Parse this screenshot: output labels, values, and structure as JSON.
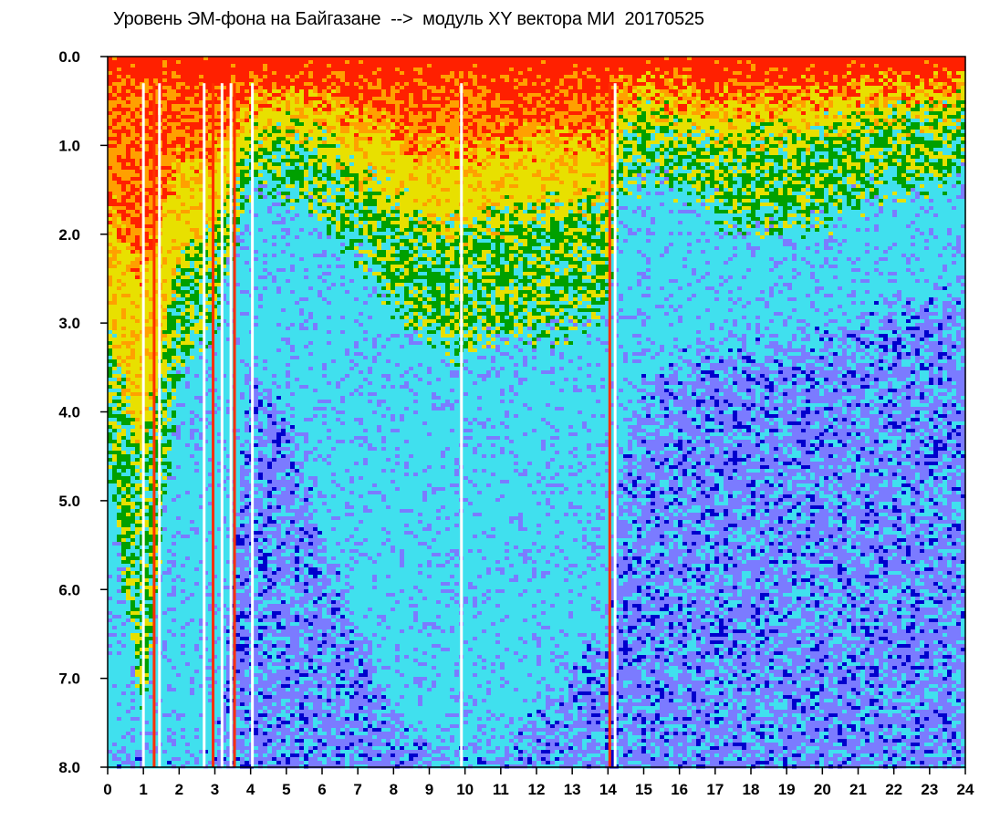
{
  "title": "Уровень ЭМ-фона на Байгазане  -->  модуль XY вектора МИ  20170525",
  "chart_data": {
    "type": "heatmap",
    "title": "Уровень ЭМ-фона на Байгазане  -->  модуль XY вектора МИ  20170525",
    "xlabel": "",
    "ylabel": "",
    "x_ticks": [
      "0",
      "1",
      "2",
      "3",
      "4",
      "5",
      "6",
      "7",
      "8",
      "9",
      "10",
      "11",
      "12",
      "13",
      "14",
      "15",
      "16",
      "17",
      "18",
      "19",
      "20",
      "21",
      "22",
      "23",
      "24"
    ],
    "y_ticks": [
      "0.0",
      "1.0",
      "2.0",
      "3.0",
      "4.0",
      "5.0",
      "6.0",
      "7.0",
      "8.0"
    ],
    "xlim": [
      0,
      24
    ],
    "ylim": [
      0,
      8
    ],
    "y_inverted": true,
    "grid": false,
    "colormap": [
      "#0000cc",
      "#7b7bff",
      "#40e0ee",
      "#00a000",
      "#e8e000",
      "#ffa000",
      "#ff2000"
    ],
    "level_profile": {
      "description_hours": [
        0,
        1,
        2,
        3,
        4,
        5,
        6,
        7,
        8,
        9,
        10,
        11,
        12,
        13,
        14,
        14.3,
        15,
        16,
        17,
        18,
        19,
        20,
        21,
        22,
        23,
        24
      ],
      "yellow_depth": [
        3.0,
        4.5,
        2.2,
        2.0,
        0.9,
        0.8,
        1.0,
        1.3,
        1.6,
        1.9,
        1.9,
        1.8,
        1.7,
        1.7,
        1.6,
        0.8,
        0.6,
        0.8,
        0.9,
        0.9,
        0.9,
        0.8,
        0.7,
        0.7,
        0.6,
        0.6
      ],
      "green_depth": [
        4.5,
        7.5,
        3.5,
        3.0,
        1.4,
        1.5,
        1.8,
        2.2,
        2.8,
        3.2,
        3.3,
        3.2,
        3.1,
        3.0,
        2.8,
        1.6,
        1.3,
        1.5,
        1.7,
        1.9,
        1.9,
        1.8,
        1.6,
        1.5,
        1.4,
        1.3
      ],
      "cyan_depth": [
        8.0,
        8.0,
        8.0,
        8.0,
        3.5,
        4.0,
        5.5,
        6.5,
        7.5,
        7.8,
        8.0,
        7.8,
        7.5,
        7.0,
        6.5,
        4.5,
        3.8,
        3.5,
        3.2,
        3.3,
        3.4,
        3.2,
        3.0,
        2.8,
        2.8,
        2.7
      ]
    },
    "vertical_streaks_hours": [
      1.0,
      1.3,
      1.45,
      2.7,
      2.95,
      3.2,
      3.45,
      3.55,
      4.05,
      9.9,
      14.05,
      14.2
    ]
  }
}
